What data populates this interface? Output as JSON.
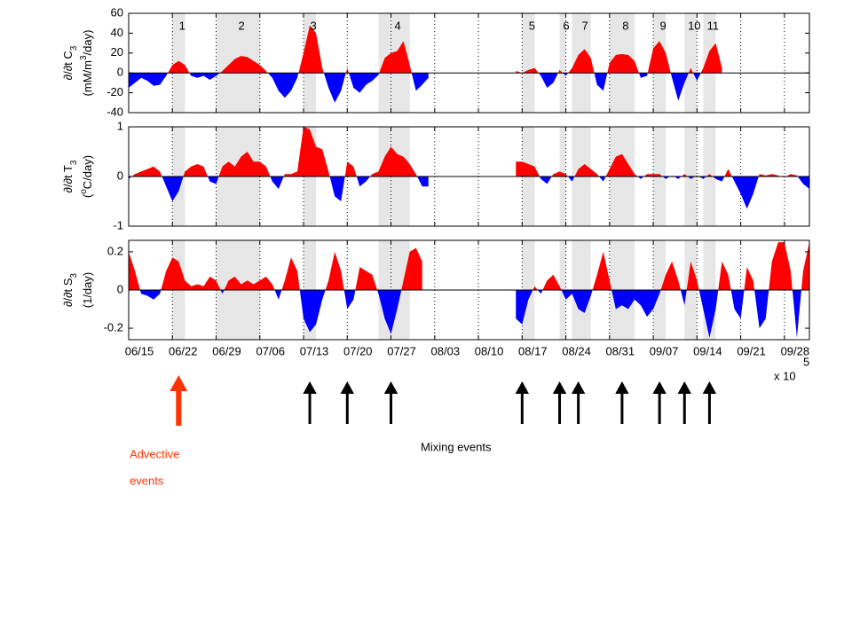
{
  "chart_data": {
    "type": "area",
    "x": [
      "06/15",
      "06/16",
      "06/17",
      "06/18",
      "06/19",
      "06/20",
      "06/21",
      "06/22",
      "06/23",
      "06/24",
      "06/25",
      "06/26",
      "06/27",
      "06/28",
      "06/29",
      "06/30",
      "07/01",
      "07/02",
      "07/03",
      "07/04",
      "07/05",
      "07/06",
      "07/07",
      "07/08",
      "07/09",
      "07/10",
      "07/11",
      "07/12",
      "07/13",
      "07/14",
      "07/15",
      "07/16",
      "07/17",
      "07/18",
      "07/19",
      "07/20",
      "07/21",
      "07/22",
      "07/23",
      "07/24",
      "07/25",
      "07/26",
      "07/27",
      "07/28",
      "07/29",
      "07/30",
      "07/31",
      "08/01",
      "08/02",
      "08/03",
      "08/04",
      "08/05",
      "08/06",
      "08/07",
      "08/08",
      "08/09",
      "08/10",
      "08/11",
      "08/12",
      "08/13",
      "08/14",
      "08/15",
      "08/16",
      "08/17",
      "08/18",
      "08/19",
      "08/20",
      "08/21",
      "08/22",
      "08/23",
      "08/24",
      "08/25",
      "08/26",
      "08/27",
      "08/28",
      "08/29",
      "08/30",
      "08/31",
      "09/01",
      "09/02",
      "09/03",
      "09/04",
      "09/05",
      "09/06",
      "09/07",
      "09/08",
      "09/09",
      "09/10",
      "09/11",
      "09/12",
      "09/13",
      "09/14",
      "09/15",
      "09/16",
      "09/17",
      "09/18",
      "09/19",
      "09/20",
      "09/21",
      "09/22",
      "09/23",
      "09/24",
      "09/25",
      "09/26",
      "09/27",
      "09/28",
      "09/29",
      "09/30",
      "10/01",
      "10/02"
    ],
    "xticks": [
      "06/15",
      "06/22",
      "06/29",
      "07/06",
      "07/13",
      "07/20",
      "07/27",
      "08/03",
      "08/10",
      "08/17",
      "08/24",
      "08/31",
      "09/07",
      "09/14",
      "09/21",
      "09/28"
    ],
    "grid": true,
    "colors": {
      "positive": "#ff0000",
      "negative": "#0000ff",
      "band": "#e6e6e6",
      "advective": "#ff3300",
      "mixing": "#000000"
    },
    "panels": [
      {
        "ylabel": [
          "∂/∂t C",
          "3"
        ],
        "unit": [
          "(mM/m",
          "3",
          "/day)"
        ],
        "ylim": [
          -40,
          60
        ],
        "yticks": [
          -40,
          -20,
          0,
          20,
          40,
          60
        ],
        "values": [
          -15,
          -10,
          -5,
          -8,
          -13,
          -12,
          -3,
          8,
          12,
          8,
          -3,
          -5,
          -3,
          -7,
          -3,
          2,
          8,
          14,
          17,
          16,
          12,
          8,
          2,
          -5,
          -18,
          -25,
          -18,
          -5,
          20,
          48,
          40,
          5,
          -15,
          -30,
          -18,
          5,
          -15,
          -20,
          -12,
          -8,
          -2,
          15,
          20,
          22,
          32,
          8,
          -18,
          -12,
          -5,
          null,
          null,
          null,
          null,
          null,
          null,
          null,
          null,
          null,
          null,
          null,
          null,
          null,
          2,
          0,
          3,
          5,
          -3,
          -15,
          -10,
          3,
          -3,
          5,
          18,
          24,
          15,
          -12,
          -18,
          10,
          18,
          19,
          18,
          12,
          -5,
          -3,
          25,
          32,
          20,
          -5,
          -28,
          -10,
          5,
          -8,
          5,
          22,
          30,
          5,
          null,
          null,
          null,
          null,
          null,
          null,
          null,
          null,
          null,
          null,
          null,
          null,
          null,
          null
        ]
      },
      {
        "ylabel": [
          "∂/∂t T",
          "3"
        ],
        "unit": [
          "(",
          "o",
          "C/day)"
        ],
        "ylim": [
          -1,
          1
        ],
        "yticks": [
          -1,
          0,
          1
        ],
        "values": [
          -0.05,
          0.05,
          0.1,
          0.15,
          0.2,
          0.1,
          -0.2,
          -0.5,
          -0.3,
          0.1,
          0.2,
          0.25,
          0.2,
          -0.1,
          -0.15,
          0.2,
          0.3,
          0.2,
          0.4,
          0.5,
          0.3,
          0.3,
          0.2,
          -0.1,
          -0.25,
          0.05,
          0.05,
          0.1,
          1.0,
          0.95,
          0.6,
          0.55,
          0.1,
          -0.4,
          -0.5,
          0.3,
          0.2,
          -0.2,
          -0.1,
          0.05,
          0.1,
          0.4,
          0.6,
          0.45,
          0.4,
          0.25,
          0.05,
          -0.2,
          -0.2,
          null,
          null,
          null,
          null,
          null,
          null,
          null,
          null,
          null,
          null,
          null,
          null,
          null,
          0.3,
          0.3,
          0.25,
          0.2,
          -0.05,
          -0.15,
          0.05,
          0.1,
          0.05,
          -0.1,
          0.15,
          0.25,
          0.15,
          0.05,
          -0.1,
          0.15,
          0.4,
          0.45,
          0.25,
          0.05,
          -0.05,
          0.05,
          0.05,
          0.05,
          -0.05,
          0.02,
          -0.05,
          0.05,
          -0.05,
          0.02,
          -0.05,
          0.05,
          -0.05,
          -0.1,
          0.15,
          -0.1,
          -0.35,
          -0.65,
          -0.35,
          0.05,
          0.02,
          0.05,
          0.02,
          -0.02,
          0.05,
          0.02,
          -0.15,
          -0.25
        ]
      },
      {
        "ylabel": [
          "∂/∂t S",
          "3"
        ],
        "unit": [
          "(1/day)"
        ],
        "ylim": [
          -0.26,
          0.26
        ],
        "yticks": [
          -0.2,
          0,
          0.2
        ],
        "values": [
          0.2,
          0.1,
          -0.02,
          -0.03,
          -0.05,
          -0.02,
          0.1,
          0.17,
          0.15,
          0.05,
          0.02,
          0.03,
          0.02,
          0.07,
          0.05,
          -0.02,
          0.05,
          0.07,
          0.03,
          0.05,
          0.03,
          0.05,
          0.07,
          0.03,
          -0.05,
          0.05,
          0.17,
          0.1,
          -0.15,
          -0.22,
          -0.18,
          -0.05,
          0.05,
          0.2,
          0.1,
          -0.1,
          -0.05,
          0.12,
          0.1,
          0.08,
          -0.02,
          -0.15,
          -0.23,
          -0.1,
          0.05,
          0.2,
          0.22,
          0.15,
          null,
          null,
          null,
          null,
          null,
          null,
          null,
          null,
          null,
          null,
          null,
          null,
          null,
          null,
          -0.15,
          -0.18,
          -0.05,
          0.02,
          -0.02,
          0.05,
          0.08,
          0.02,
          -0.05,
          -0.02,
          -0.1,
          -0.12,
          -0.03,
          0.08,
          0.2,
          0.05,
          -0.1,
          -0.08,
          -0.1,
          -0.05,
          -0.08,
          -0.14,
          -0.1,
          -0.02,
          0.08,
          0.15,
          0.05,
          -0.08,
          0.15,
          0.05,
          -0.1,
          -0.25,
          -0.1,
          0.15,
          0.08,
          -0.1,
          -0.15,
          0.12,
          0.05,
          -0.2,
          -0.15,
          0.15,
          0.25,
          0.25,
          0.1,
          -0.25,
          0.1,
          0.25
        ]
      }
    ],
    "events": [
      {
        "label": "1",
        "start": "06/22",
        "end": "06/24"
      },
      {
        "label": "2",
        "start": "06/29",
        "end": "07/06"
      },
      {
        "label": "3",
        "start": "07/13",
        "end": "07/15"
      },
      {
        "label": "4",
        "start": "07/25",
        "end": "07/30"
      },
      {
        "label": "5",
        "start": "08/17",
        "end": "08/19"
      },
      {
        "label": "6",
        "start": "08/23",
        "end": "08/24"
      },
      {
        "label": "7",
        "start": "08/25",
        "end": "08/28"
      },
      {
        "label": "8",
        "start": "08/31",
        "end": "09/04"
      },
      {
        "label": "9",
        "start": "09/07",
        "end": "09/09"
      },
      {
        "label": "10",
        "start": "09/12",
        "end": "09/14"
      },
      {
        "label": "11",
        "start": "09/15",
        "end": "09/17"
      }
    ],
    "axis_scale": [
      "x 10",
      "5"
    ],
    "advective_arrows": [
      "06/23"
    ],
    "mixing_arrows": [
      "07/14",
      "07/20",
      "07/27",
      "08/17",
      "08/23",
      "08/26",
      "09/02",
      "09/08",
      "09/12",
      "09/16"
    ],
    "advective_label": [
      "Advective",
      "events"
    ],
    "mixing_label": "Mixing events"
  }
}
